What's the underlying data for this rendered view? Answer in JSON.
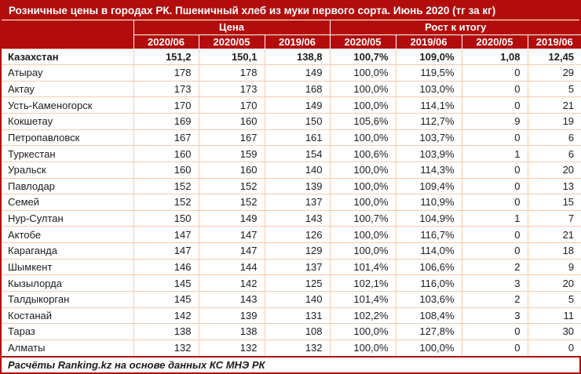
{
  "colors": {
    "header_bg": "#b20c0c",
    "grid_border": "#f8cbad",
    "header_text": "#ffffff",
    "body_text": "#1c1c1c"
  },
  "chart_data": {
    "type": "table",
    "title": "Розничные цены в городах РК. Пшеничный хлеб из муки первого сорта. Июнь 2020 (тг за кг)",
    "column_groups": [
      {
        "label": "Цена",
        "span": 3
      },
      {
        "label": "Рост к итогу",
        "span": 4
      }
    ],
    "columns": [
      "2020/06",
      "2020/05",
      "2019/06",
      "2020/05",
      "2019/06",
      "2020/05",
      "2019/06"
    ],
    "first_row_bold": true,
    "rows": [
      [
        "Казахстан",
        "151,2",
        "150,1",
        "138,8",
        "100,7%",
        "109,0%",
        "1,08",
        "12,45"
      ],
      [
        "Атырау",
        "178",
        "178",
        "149",
        "100,0%",
        "119,5%",
        "0",
        "29"
      ],
      [
        "Актау",
        "173",
        "173",
        "168",
        "100,0%",
        "103,0%",
        "0",
        "5"
      ],
      [
        "Усть-Каменогорск",
        "170",
        "170",
        "149",
        "100,0%",
        "114,1%",
        "0",
        "21"
      ],
      [
        "Кокшетау",
        "169",
        "160",
        "150",
        "105,6%",
        "112,7%",
        "9",
        "19"
      ],
      [
        "Петропавловск",
        "167",
        "167",
        "161",
        "100,0%",
        "103,7%",
        "0",
        "6"
      ],
      [
        "Туркестан",
        "160",
        "159",
        "154",
        "100,6%",
        "103,9%",
        "1",
        "6"
      ],
      [
        "Уральск",
        "160",
        "160",
        "140",
        "100,0%",
        "114,3%",
        "0",
        "20"
      ],
      [
        "Павлодар",
        "152",
        "152",
        "139",
        "100,0%",
        "109,4%",
        "0",
        "13"
      ],
      [
        "Семей",
        "152",
        "152",
        "137",
        "100,0%",
        "110,9%",
        "0",
        "15"
      ],
      [
        "Нур-Султан",
        "150",
        "149",
        "143",
        "100,7%",
        "104,9%",
        "1",
        "7"
      ],
      [
        "Актобе",
        "147",
        "147",
        "126",
        "100,0%",
        "116,7%",
        "0",
        "21"
      ],
      [
        "Караганда",
        "147",
        "147",
        "129",
        "100,0%",
        "114,0%",
        "0",
        "18"
      ],
      [
        "Шымкент",
        "146",
        "144",
        "137",
        "101,4%",
        "106,6%",
        "2",
        "9"
      ],
      [
        "Кызылорда",
        "145",
        "142",
        "125",
        "102,1%",
        "116,0%",
        "3",
        "20"
      ],
      [
        "Талдыкорган",
        "145",
        "143",
        "140",
        "101,4%",
        "103,6%",
        "2",
        "5"
      ],
      [
        "Костанай",
        "142",
        "139",
        "131",
        "102,2%",
        "108,4%",
        "3",
        "11"
      ],
      [
        "Тараз",
        "138",
        "138",
        "108",
        "100,0%",
        "127,8%",
        "0",
        "30"
      ],
      [
        "Алматы",
        "132",
        "132",
        "132",
        "100,0%",
        "100,0%",
        "0",
        "0"
      ]
    ],
    "footer": "Расчёты Ranking.kz на основе данных КС МНЭ РК"
  }
}
